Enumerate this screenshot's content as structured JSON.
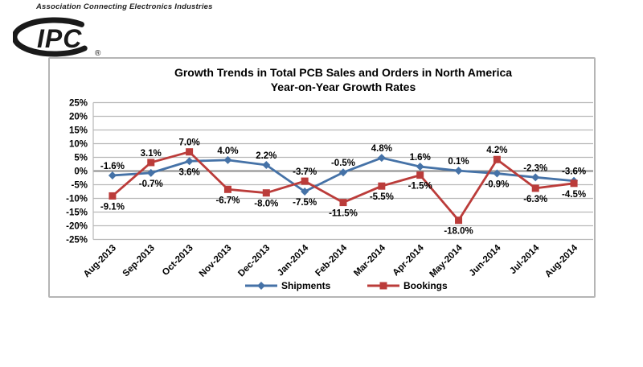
{
  "header": {
    "tagline": "Association Connecting Electronics Industries",
    "logo_text": "IPC",
    "registered_mark": "®"
  },
  "chart_data": {
    "type": "line",
    "title": "Growth Trends in Total PCB Sales and Orders in North America",
    "subtitle": "Year-on-Year Growth Rates",
    "categories": [
      "Aug-2013",
      "Sep-2013",
      "Oct-2013",
      "Nov-2013",
      "Dec-2013",
      "Jan-2014",
      "Feb-2014",
      "Mar-2014",
      "Apr-2014",
      "May-2014",
      "Jun-2014",
      "Jul-2014",
      "Aug-2014"
    ],
    "series": [
      {
        "name": "Shipments",
        "color": "#4572A7",
        "marker": "diamond",
        "values": [
          -1.6,
          -0.7,
          3.6,
          4.0,
          2.2,
          -7.5,
          -0.5,
          4.8,
          1.6,
          0.1,
          -0.9,
          -2.3,
          -3.6
        ],
        "label_positions": [
          "above",
          "below",
          "below",
          "above",
          "above",
          "below",
          "above",
          "above",
          "above",
          "above",
          "below",
          "above",
          "above"
        ]
      },
      {
        "name": "Bookings",
        "color": "#BB3C3A",
        "marker": "square",
        "values": [
          -9.1,
          3.1,
          7.0,
          -6.7,
          -8.0,
          -3.7,
          -11.5,
          -5.5,
          -1.5,
          -18.0,
          4.2,
          -6.3,
          -4.5
        ],
        "label_positions": [
          "below",
          "above",
          "above",
          "below",
          "below",
          "above",
          "below",
          "below",
          "below",
          "below",
          "above",
          "below",
          "below"
        ]
      }
    ],
    "ylim": [
      -25,
      25
    ],
    "ytick_step": 5,
    "ytick_suffix": "%",
    "value_suffix": "%",
    "grid": true,
    "legend_position": "bottom",
    "gridline_color": "#b8b8b8",
    "zero_line_color": "#8c8c8c"
  }
}
